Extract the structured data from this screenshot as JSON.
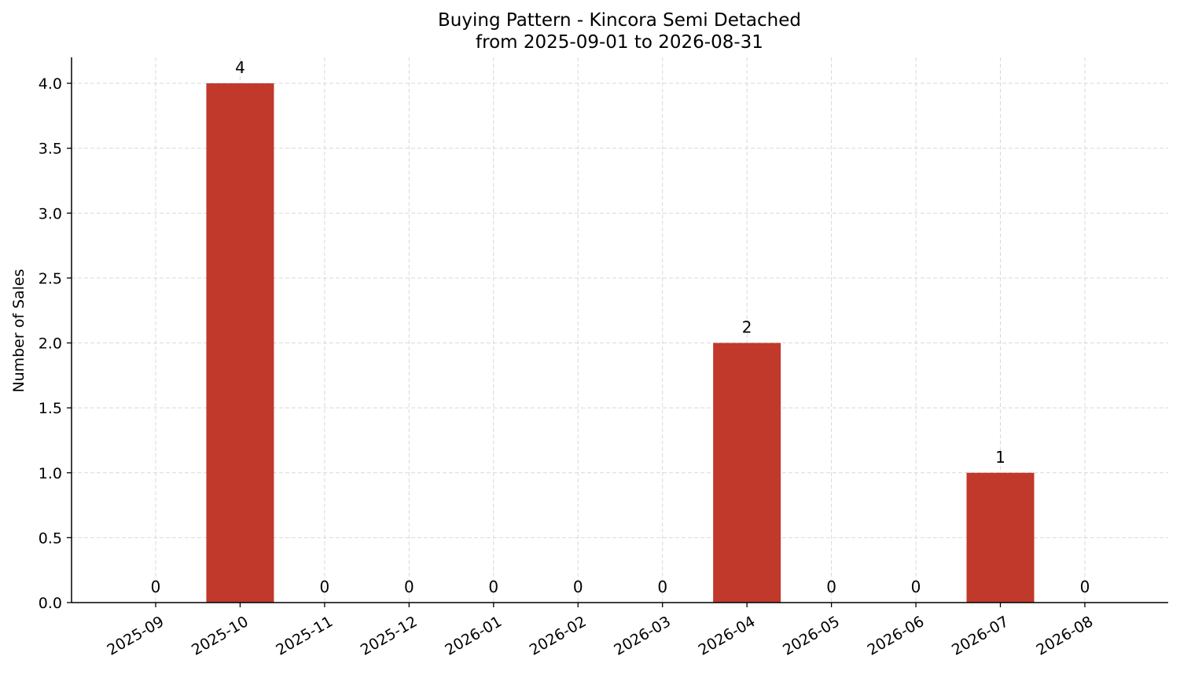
{
  "chart_data": {
    "type": "bar",
    "title": "Buying Pattern - Kincora Semi Detached",
    "subtitle": "from 2025-09-01 to 2026-08-31",
    "xlabel": "",
    "ylabel": "Number of Sales",
    "categories": [
      "2025-09",
      "2025-10",
      "2025-11",
      "2025-12",
      "2026-01",
      "2026-02",
      "2026-03",
      "2026-04",
      "2026-05",
      "2026-06",
      "2026-07",
      "2026-08"
    ],
    "values": [
      0,
      4,
      0,
      0,
      0,
      0,
      0,
      2,
      0,
      0,
      1,
      0
    ],
    "data_labels": [
      "0",
      "4",
      "0",
      "0",
      "0",
      "0",
      "0",
      "2",
      "0",
      "0",
      "1",
      "0"
    ],
    "yticks": [
      "0.0",
      "0.5",
      "1.0",
      "1.5",
      "2.0",
      "2.5",
      "3.0",
      "3.5",
      "4.0"
    ],
    "ylim": [
      0,
      4.2
    ],
    "grid": true,
    "bar_color": "#c0392b",
    "legend": "none"
  }
}
